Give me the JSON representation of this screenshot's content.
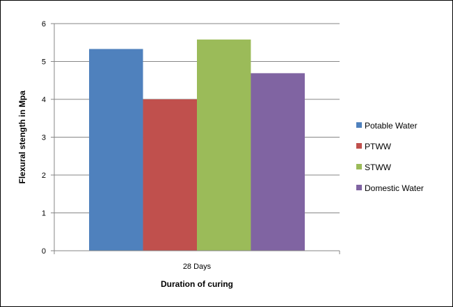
{
  "chart_data": {
    "type": "bar",
    "categories": [
      "28 Days"
    ],
    "series": [
      {
        "name": "Potable Water",
        "values": [
          5.33
        ],
        "color": "#4F81BD"
      },
      {
        "name": "PTWW",
        "values": [
          4.0
        ],
        "color": "#C0504D"
      },
      {
        "name": "STWW",
        "values": [
          5.58
        ],
        "color": "#9BBB59"
      },
      {
        "name": "Domestic Water",
        "values": [
          4.69
        ],
        "color": "#8064A2"
      }
    ],
    "xlabel": "Duration of curing",
    "ylabel": "Flexural stength in Mpa",
    "ylim": [
      0,
      6
    ],
    "yticks": [
      "0",
      "1",
      "2",
      "3",
      "4",
      "5",
      "6"
    ],
    "grid": true,
    "legend_position": "right"
  }
}
